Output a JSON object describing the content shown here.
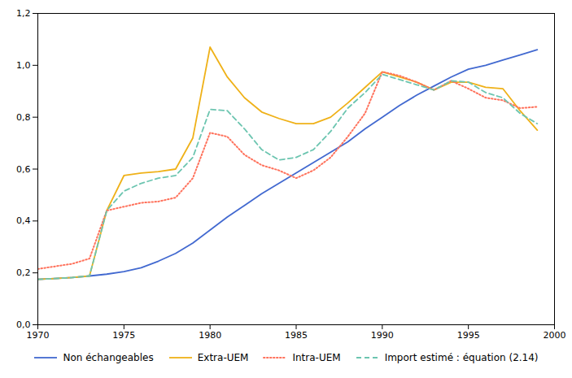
{
  "chart_data": {
    "type": "line",
    "x": [
      1970,
      1971,
      1972,
      1973,
      1974,
      1975,
      1976,
      1977,
      1978,
      1979,
      1980,
      1981,
      1982,
      1983,
      1984,
      1985,
      1986,
      1987,
      1988,
      1989,
      1990,
      1991,
      1992,
      1993,
      1994,
      1995,
      1996,
      1997,
      1998,
      1999
    ],
    "series": [
      {
        "name": "Non échangeables",
        "line_style": "solid",
        "values": [
          0.175,
          0.178,
          0.182,
          0.188,
          0.195,
          0.205,
          0.22,
          0.245,
          0.275,
          0.315,
          0.365,
          0.415,
          0.46,
          0.505,
          0.545,
          0.585,
          0.625,
          0.665,
          0.705,
          0.755,
          0.8,
          0.845,
          0.885,
          0.92,
          0.955,
          0.985,
          1.0,
          1.02,
          1.04,
          1.06
        ]
      },
      {
        "name": "Extra-UEM",
        "line_style": "solid",
        "values": [
          0.175,
          0.178,
          0.182,
          0.188,
          0.44,
          0.575,
          0.585,
          0.59,
          0.6,
          0.72,
          1.07,
          0.955,
          0.875,
          0.82,
          0.795,
          0.775,
          0.775,
          0.8,
          0.855,
          0.915,
          0.975,
          0.955,
          0.935,
          0.905,
          0.935,
          0.935,
          0.915,
          0.91,
          0.825,
          0.75
        ]
      },
      {
        "name": "Intra-UEM",
        "line_style": "dotted",
        "values": [
          0.215,
          0.225,
          0.235,
          0.255,
          0.44,
          0.455,
          0.47,
          0.475,
          0.49,
          0.565,
          0.74,
          0.725,
          0.655,
          0.615,
          0.595,
          0.565,
          0.595,
          0.645,
          0.725,
          0.815,
          0.975,
          0.96,
          0.935,
          0.905,
          0.94,
          0.91,
          0.875,
          0.865,
          0.835,
          0.84
        ]
      },
      {
        "name": "Import estimé :  équation (2.14)",
        "line_style": "dashed",
        "values": [
          0.175,
          0.178,
          0.182,
          0.188,
          0.44,
          0.515,
          0.545,
          0.565,
          0.575,
          0.645,
          0.83,
          0.825,
          0.755,
          0.675,
          0.635,
          0.645,
          0.675,
          0.745,
          0.835,
          0.895,
          0.965,
          0.945,
          0.925,
          0.905,
          0.94,
          0.935,
          0.895,
          0.875,
          0.815,
          0.775
        ]
      }
    ],
    "xlim": [
      1970,
      2000
    ],
    "xticks": [
      1970,
      1975,
      1980,
      1985,
      1990,
      1995,
      2000
    ],
    "ylim": [
      0.0,
      1.2
    ],
    "yticks": [
      {
        "value": 0.0,
        "label": "0,0"
      },
      {
        "value": 0.2,
        "label": "0,2"
      },
      {
        "value": 0.4,
        "label": "0,4"
      },
      {
        "value": 0.6,
        "label": "0,6"
      },
      {
        "value": 0.8,
        "label": "0,8"
      },
      {
        "value": 1.0,
        "label": "1,0"
      },
      {
        "value": 1.2,
        "label": "1,2"
      }
    ],
    "grid": false,
    "legend": "bottom"
  }
}
